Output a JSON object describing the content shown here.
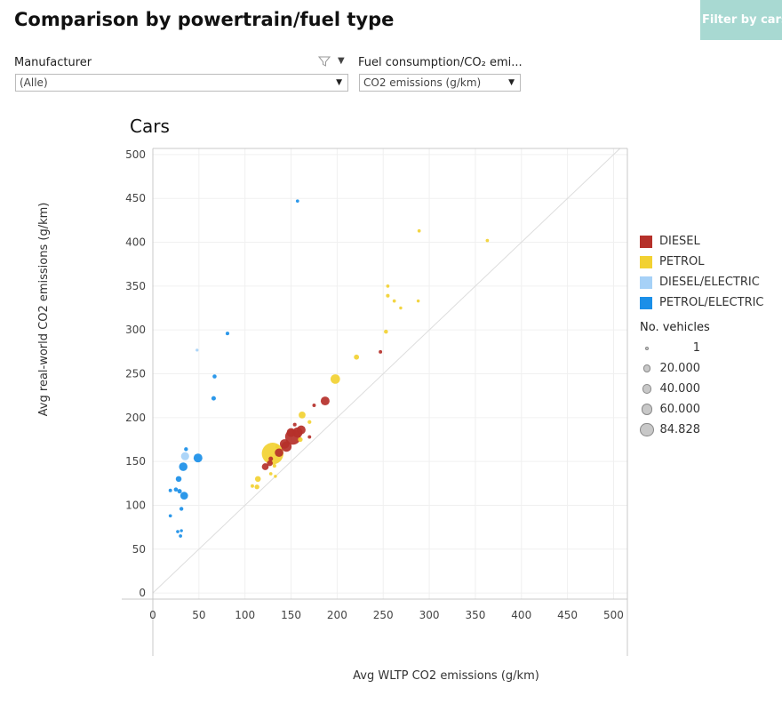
{
  "page": {
    "title": "Comparison by powertrain/fuel type",
    "filter_button": "Filter by cars o"
  },
  "controls": {
    "manufacturer": {
      "label": "Manufacturer",
      "value": "(Alle)"
    },
    "measure": {
      "label": "Fuel consumption/CO₂ emi...",
      "value": "CO2 emissions (g/km)"
    }
  },
  "colors": {
    "DIESEL": "#b5302a",
    "PETROL": "#f2d132",
    "DIESEL/ELECTRIC": "#a6d1f7",
    "PETROL/ELECTRIC": "#1a8fe8"
  },
  "legend": {
    "items": [
      {
        "label": "DIESEL",
        "key": "DIESEL"
      },
      {
        "label": "PETROL",
        "key": "PETROL"
      },
      {
        "label": "DIESEL/ELECTRIC",
        "key": "DIESEL/ELECTRIC"
      },
      {
        "label": "PETROL/ELECTRIC",
        "key": "PETROL/ELECTRIC"
      }
    ],
    "size_title": "No. vehicles",
    "sizes": [
      {
        "label": "1",
        "n": 1
      },
      {
        "label": "20.000",
        "n": 20000
      },
      {
        "label": "40.000",
        "n": 40000
      },
      {
        "label": "60.000",
        "n": 60000
      },
      {
        "label": "84.828",
        "n": 84828
      }
    ]
  },
  "chart_data": {
    "type": "scatter",
    "title": "Cars",
    "xlabel": "Avg WLTP CO2 emissions (g/km)",
    "ylabel": "Avg real-world CO2 emissions (g/km)",
    "xlim": [
      0,
      515
    ],
    "ylim": [
      -7,
      507
    ],
    "xticks": [
      0,
      50,
      100,
      150,
      200,
      250,
      300,
      350,
      400,
      450,
      500
    ],
    "yticks": [
      0,
      50,
      100,
      150,
      200,
      250,
      300,
      350,
      400,
      450,
      500
    ],
    "diagonal": true,
    "points": [
      {
        "x": 157,
        "y": 447,
        "fuel": "PETROL/ELECTRIC",
        "n": 300
      },
      {
        "x": 81,
        "y": 296,
        "fuel": "PETROL/ELECTRIC",
        "n": 500
      },
      {
        "x": 67,
        "y": 247,
        "fuel": "PETROL/ELECTRIC",
        "n": 800
      },
      {
        "x": 66,
        "y": 222,
        "fuel": "PETROL/ELECTRIC",
        "n": 1200
      },
      {
        "x": 48,
        "y": 277,
        "fuel": "DIESEL/ELECTRIC",
        "n": 150
      },
      {
        "x": 36,
        "y": 164,
        "fuel": "PETROL/ELECTRIC",
        "n": 700
      },
      {
        "x": 35,
        "y": 156,
        "fuel": "DIESEL/ELECTRIC",
        "n": 8000
      },
      {
        "x": 49,
        "y": 154,
        "fuel": "PETROL/ELECTRIC",
        "n": 10000
      },
      {
        "x": 33,
        "y": 144,
        "fuel": "PETROL/ELECTRIC",
        "n": 9000
      },
      {
        "x": 28,
        "y": 130,
        "fuel": "PETROL/ELECTRIC",
        "n": 3000
      },
      {
        "x": 25,
        "y": 118,
        "fuel": "PETROL/ELECTRIC",
        "n": 900
      },
      {
        "x": 29,
        "y": 116,
        "fuel": "PETROL/ELECTRIC",
        "n": 1200
      },
      {
        "x": 19,
        "y": 117,
        "fuel": "PETROL/ELECTRIC",
        "n": 400
      },
      {
        "x": 34,
        "y": 111,
        "fuel": "PETROL/ELECTRIC",
        "n": 7000
      },
      {
        "x": 31,
        "y": 96,
        "fuel": "PETROL/ELECTRIC",
        "n": 700
      },
      {
        "x": 19,
        "y": 88,
        "fuel": "PETROL/ELECTRIC",
        "n": 300
      },
      {
        "x": 27,
        "y": 70,
        "fuel": "PETROL/ELECTRIC",
        "n": 300
      },
      {
        "x": 31,
        "y": 71,
        "fuel": "PETROL/ELECTRIC",
        "n": 200
      },
      {
        "x": 30,
        "y": 65,
        "fuel": "PETROL/ELECTRIC",
        "n": 300
      },
      {
        "x": 289,
        "y": 413,
        "fuel": "PETROL",
        "n": 300
      },
      {
        "x": 363,
        "y": 402,
        "fuel": "PETROL",
        "n": 300
      },
      {
        "x": 255,
        "y": 350,
        "fuel": "PETROL",
        "n": 300
      },
      {
        "x": 255,
        "y": 339,
        "fuel": "PETROL",
        "n": 500
      },
      {
        "x": 262,
        "y": 333,
        "fuel": "PETROL",
        "n": 300
      },
      {
        "x": 269,
        "y": 325,
        "fuel": "PETROL",
        "n": 200
      },
      {
        "x": 288,
        "y": 333,
        "fuel": "PETROL",
        "n": 200
      },
      {
        "x": 253,
        "y": 298,
        "fuel": "PETROL",
        "n": 800
      },
      {
        "x": 221,
        "y": 269,
        "fuel": "PETROL",
        "n": 2000
      },
      {
        "x": 247,
        "y": 275,
        "fuel": "DIESEL",
        "n": 400
      },
      {
        "x": 198,
        "y": 244,
        "fuel": "PETROL",
        "n": 12000
      },
      {
        "x": 187,
        "y": 219,
        "fuel": "DIESEL",
        "n": 10000
      },
      {
        "x": 175,
        "y": 214,
        "fuel": "DIESEL",
        "n": 400
      },
      {
        "x": 162,
        "y": 203,
        "fuel": "PETROL",
        "n": 5000
      },
      {
        "x": 170,
        "y": 195,
        "fuel": "PETROL",
        "n": 600
      },
      {
        "x": 154,
        "y": 192,
        "fuel": "DIESEL",
        "n": 500
      },
      {
        "x": 161,
        "y": 186,
        "fuel": "DIESEL",
        "n": 10000
      },
      {
        "x": 157,
        "y": 183,
        "fuel": "DIESEL",
        "n": 14000
      },
      {
        "x": 150,
        "y": 183,
        "fuel": "DIESEL",
        "n": 10000
      },
      {
        "x": 152,
        "y": 178,
        "fuel": "DIESEL",
        "n": 40000
      },
      {
        "x": 170,
        "y": 178,
        "fuel": "DIESEL",
        "n": 400
      },
      {
        "x": 160,
        "y": 175,
        "fuel": "PETROL",
        "n": 1500
      },
      {
        "x": 143,
        "y": 170,
        "fuel": "DIESEL",
        "n": 12000
      },
      {
        "x": 135,
        "y": 167,
        "fuel": "PETROL",
        "n": 600
      },
      {
        "x": 145,
        "y": 167,
        "fuel": "DIESEL",
        "n": 15000
      },
      {
        "x": 130,
        "y": 159,
        "fuel": "PETROL",
        "n": 84828
      },
      {
        "x": 137,
        "y": 160,
        "fuel": "DIESEL",
        "n": 9000
      },
      {
        "x": 128,
        "y": 153,
        "fuel": "DIESEL",
        "n": 1200
      },
      {
        "x": 127,
        "y": 148,
        "fuel": "DIESEL",
        "n": 3000
      },
      {
        "x": 122,
        "y": 144,
        "fuel": "DIESEL",
        "n": 5000
      },
      {
        "x": 132,
        "y": 145,
        "fuel": "PETROL",
        "n": 500
      },
      {
        "x": 128,
        "y": 136,
        "fuel": "PETROL",
        "n": 300
      },
      {
        "x": 133,
        "y": 133,
        "fuel": "PETROL",
        "n": 200
      },
      {
        "x": 114,
        "y": 130,
        "fuel": "PETROL",
        "n": 3000
      },
      {
        "x": 113,
        "y": 121,
        "fuel": "PETROL",
        "n": 1500
      },
      {
        "x": 108,
        "y": 122,
        "fuel": "PETROL",
        "n": 400
      }
    ]
  }
}
